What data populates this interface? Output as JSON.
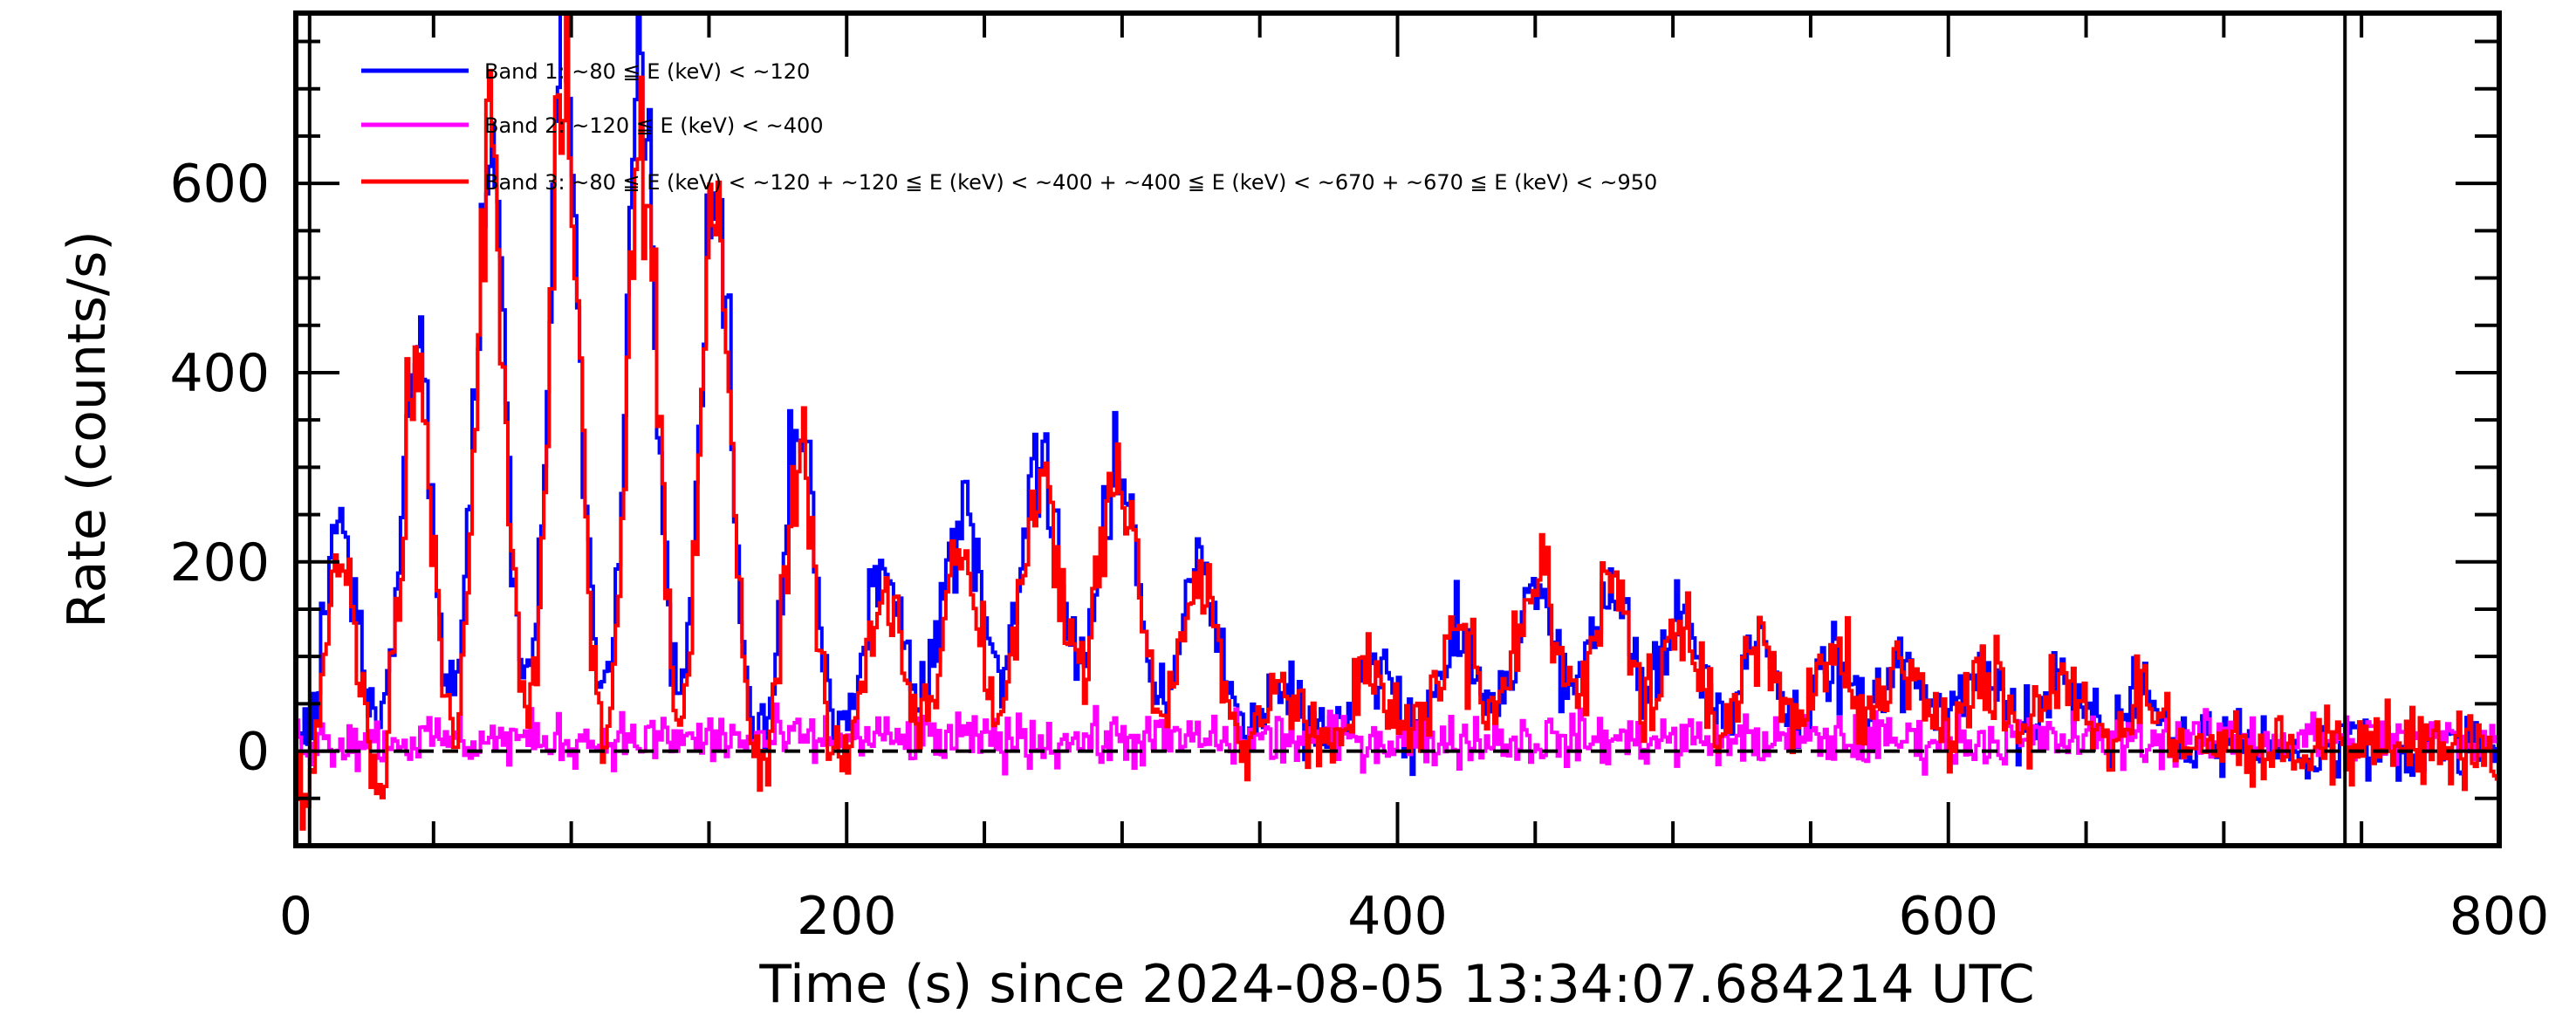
{
  "chart_data": {
    "type": "line",
    "title": "",
    "xlabel": "Time (s) since 2024-08-05 13:34:07.684214 UTC",
    "ylabel": "Rate (counts/s)",
    "xlim": [
      0,
      800
    ],
    "ylim": [
      -100,
      780
    ],
    "xticks": [
      "0",
      "200",
      "400",
      "600",
      "800"
    ],
    "xtick_values": [
      0,
      200,
      400,
      600,
      800
    ],
    "yticks": [
      "0",
      "200",
      "400",
      "600"
    ],
    "ytick_values": [
      0,
      200,
      400,
      600
    ],
    "legend_placement": "top-left",
    "vertical_markers": [
      5,
      744
    ],
    "zero_line": 0,
    "bin_seconds": 1,
    "series": [
      {
        "name": "Band 1: ~80 ≦ E (keV) < ~120",
        "color": "#0000ff",
        "noise": 18,
        "baseline": 5
      },
      {
        "name": "Band 2: ~120 ≦ E (keV) < ~400",
        "color": "#ff00ff",
        "noise": 14,
        "baseline": 12
      },
      {
        "name": "Band 3: ~80 ≦ E (keV) < ~120 + ~120 ≦ E (keV) < ~400 + ~400 ≦ E (keV) < ~670 + ~670 ≦ E (keV) < ~950",
        "color": "#ff0000",
        "noise": 22,
        "baseline": 0
      }
    ],
    "peaks": [
      {
        "t": 16,
        "band1": 230,
        "band3": 190
      },
      {
        "t": 43.5,
        "band1": 420,
        "band3": 400
      },
      {
        "t": 70,
        "band1": 640,
        "band3": 620
      },
      {
        "t": 97,
        "band1": 740,
        "band3": 700
      },
      {
        "t": 125,
        "band1": 670,
        "band3": 650
      },
      {
        "t": 152,
        "band1": 610,
        "band3": 580
      },
      {
        "t": 182.5,
        "band1": 340,
        "band3": 300
      },
      {
        "t": 213,
        "band1": 185,
        "band3": 160
      },
      {
        "t": 241.6,
        "band1": 250,
        "band3": 210
      },
      {
        "t": 270,
        "band1": 310,
        "band3": 280
      },
      {
        "t": 298,
        "band1": 300,
        "band3": 290
      },
      {
        "t": 327.5,
        "band1": 190,
        "band3": 170
      },
      {
        "t": 358,
        "band1": 70,
        "band3": 65
      },
      {
        "t": 389.6,
        "band1": 90,
        "band3": 80
      },
      {
        "t": 421,
        "band1": 130,
        "band3": 130
      },
      {
        "t": 450,
        "band1": 180,
        "band3": 180
      },
      {
        "t": 477,
        "band1": 175,
        "band3": 170
      },
      {
        "t": 503,
        "band1": 140,
        "band3": 140
      },
      {
        "t": 531,
        "band1": 110,
        "band3": 110
      },
      {
        "t": 558,
        "band1": 95,
        "band3": 95
      },
      {
        "t": 583,
        "band1": 95,
        "band3": 90
      },
      {
        "t": 612,
        "band1": 90,
        "band3": 90
      },
      {
        "t": 640,
        "band1": 80,
        "band3": 80
      },
      {
        "t": 670,
        "band1": 60,
        "band3": 60
      }
    ],
    "band3_dip_between_peaks": -60,
    "band3_dip_until": 260
  }
}
